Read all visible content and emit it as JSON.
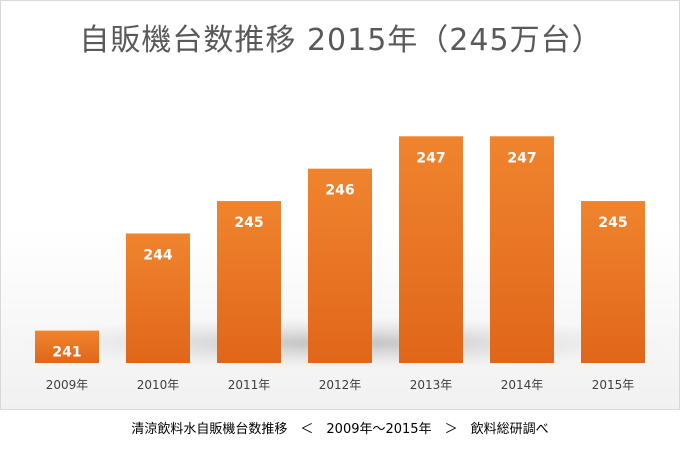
{
  "chart_data": {
    "type": "bar",
    "title": "自販機台数推移 2015年（245万台）",
    "categories": [
      "2009年",
      "2010年",
      "2011年",
      "2012年",
      "2013年",
      "2014年",
      "2015年"
    ],
    "values": [
      241,
      244,
      245,
      246,
      247,
      247,
      245
    ],
    "value_labels": [
      "241",
      "244",
      "245",
      "246",
      "247",
      "247",
      "245"
    ],
    "ylim": [
      240,
      247.75
    ],
    "grid": false,
    "legend": "none",
    "bar_color": "#ED7D31"
  },
  "caption": "清涼飲料水自販機台数推移　＜　2009年〜2015年　＞　飲料総研調べ"
}
